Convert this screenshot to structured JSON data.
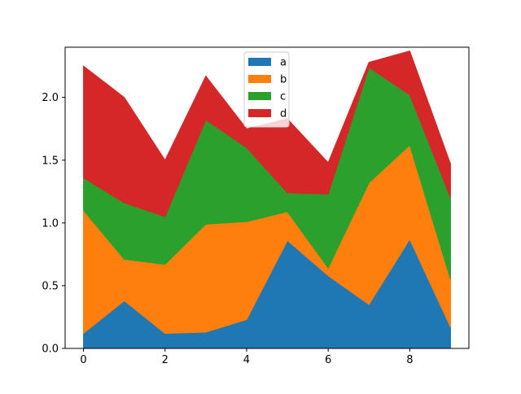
{
  "chart_data": {
    "type": "area",
    "stacked": true,
    "title": "",
    "xlabel": "",
    "ylabel": "",
    "x": [
      0,
      1,
      2,
      3,
      4,
      5,
      6,
      7,
      8,
      9
    ],
    "xlim": [
      -0.45,
      9.45
    ],
    "ylim": [
      0.0,
      2.4
    ],
    "xticks": [
      0,
      2,
      4,
      6,
      8
    ],
    "xtick_labels": [
      "0",
      "2",
      "4",
      "6",
      "8"
    ],
    "yticks": [
      0.0,
      0.5,
      1.0,
      1.5,
      2.0
    ],
    "ytick_labels": [
      "0.0",
      "0.5",
      "1.0",
      "1.5",
      "2.0"
    ],
    "grid": false,
    "legend_position": "top-center",
    "series": [
      {
        "name": "a",
        "color": "#1f77b4",
        "values": [
          0.12,
          0.38,
          0.12,
          0.13,
          0.23,
          0.86,
          0.58,
          0.35,
          0.87,
          0.17
        ]
      },
      {
        "name": "b",
        "color": "#ff7f0e",
        "values": [
          0.98,
          0.33,
          0.55,
          0.86,
          0.78,
          0.23,
          0.06,
          0.97,
          0.75,
          0.38
        ]
      },
      {
        "name": "c",
        "color": "#2ca02c",
        "values": [
          0.26,
          0.45,
          0.38,
          0.83,
          0.59,
          0.15,
          0.59,
          0.92,
          0.4,
          0.65
        ]
      },
      {
        "name": "d",
        "color": "#d62728",
        "values": [
          0.89,
          0.84,
          0.45,
          0.35,
          0.15,
          0.59,
          0.25,
          0.04,
          0.35,
          0.27
        ]
      }
    ]
  }
}
